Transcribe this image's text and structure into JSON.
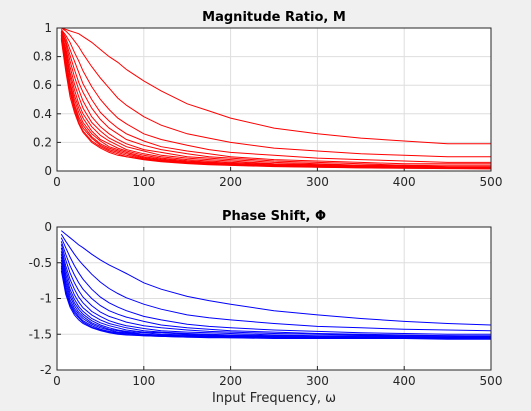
{
  "chart_data": [
    {
      "type": "line",
      "title": "Magnitude Ratio, M",
      "xlabel": "",
      "ylabel": "",
      "xlim": [
        0,
        500
      ],
      "ylim": [
        0,
        1
      ],
      "xticks": [
        "0",
        "100",
        "200",
        "300",
        "400",
        "500"
      ],
      "yticks": [
        "0",
        "0.2",
        "0.4",
        "0.6",
        "0.8",
        "1"
      ],
      "grid": true,
      "color": "#ff0000",
      "x": [
        5,
        10,
        15,
        20,
        25,
        30,
        40,
        50,
        60,
        70,
        80,
        100,
        120,
        150,
        175,
        200,
        250,
        300,
        350,
        400,
        450,
        500
      ],
      "series": [
        {
          "values": [
            1.0,
            0.99,
            0.98,
            0.97,
            0.96,
            0.94,
            0.9,
            0.85,
            0.8,
            0.76,
            0.71,
            0.63,
            0.56,
            0.47,
            0.42,
            0.37,
            0.3,
            0.26,
            0.23,
            0.21,
            0.19,
            0.19
          ]
        },
        {
          "values": [
            1.0,
            0.98,
            0.95,
            0.91,
            0.87,
            0.82,
            0.73,
            0.65,
            0.58,
            0.51,
            0.46,
            0.38,
            0.32,
            0.26,
            0.23,
            0.2,
            0.16,
            0.14,
            0.12,
            0.11,
            0.1,
            0.1
          ]
        },
        {
          "values": [
            0.99,
            0.95,
            0.9,
            0.83,
            0.77,
            0.7,
            0.59,
            0.5,
            0.43,
            0.37,
            0.33,
            0.26,
            0.22,
            0.18,
            0.15,
            0.13,
            0.11,
            0.09,
            0.08,
            0.07,
            0.06,
            0.06
          ]
        },
        {
          "values": [
            0.99,
            0.93,
            0.85,
            0.77,
            0.69,
            0.61,
            0.5,
            0.41,
            0.35,
            0.3,
            0.26,
            0.21,
            0.17,
            0.14,
            0.12,
            0.1,
            0.08,
            0.07,
            0.06,
            0.05,
            0.05,
            0.05
          ]
        },
        {
          "values": [
            0.98,
            0.91,
            0.81,
            0.71,
            0.62,
            0.55,
            0.44,
            0.36,
            0.3,
            0.26,
            0.22,
            0.18,
            0.15,
            0.12,
            0.1,
            0.09,
            0.07,
            0.06,
            0.05,
            0.04,
            0.04,
            0.04
          ]
        },
        {
          "values": [
            0.98,
            0.89,
            0.77,
            0.66,
            0.57,
            0.49,
            0.38,
            0.31,
            0.26,
            0.22,
            0.19,
            0.15,
            0.13,
            0.1,
            0.09,
            0.08,
            0.06,
            0.05,
            0.04,
            0.04,
            0.03,
            0.03
          ]
        },
        {
          "values": [
            0.97,
            0.86,
            0.73,
            0.61,
            0.52,
            0.44,
            0.34,
            0.28,
            0.23,
            0.2,
            0.17,
            0.14,
            0.11,
            0.09,
            0.08,
            0.07,
            0.05,
            0.045,
            0.04,
            0.035,
            0.03,
            0.03
          ]
        },
        {
          "values": [
            0.97,
            0.84,
            0.69,
            0.57,
            0.47,
            0.4,
            0.31,
            0.25,
            0.21,
            0.18,
            0.15,
            0.12,
            0.1,
            0.08,
            0.07,
            0.06,
            0.048,
            0.04,
            0.035,
            0.03,
            0.027,
            0.025
          ]
        },
        {
          "values": [
            0.96,
            0.82,
            0.66,
            0.53,
            0.44,
            0.37,
            0.28,
            0.22,
            0.19,
            0.16,
            0.14,
            0.11,
            0.09,
            0.072,
            0.062,
            0.054,
            0.043,
            0.036,
            0.031,
            0.027,
            0.024,
            0.022
          ]
        },
        {
          "values": [
            0.95,
            0.79,
            0.62,
            0.5,
            0.41,
            0.34,
            0.26,
            0.21,
            0.17,
            0.15,
            0.13,
            0.1,
            0.083,
            0.066,
            0.057,
            0.05,
            0.04,
            0.033,
            0.029,
            0.025,
            0.022,
            0.02
          ]
        },
        {
          "values": [
            0.95,
            0.77,
            0.6,
            0.47,
            0.38,
            0.32,
            0.24,
            0.19,
            0.16,
            0.14,
            0.12,
            0.093,
            0.077,
            0.062,
            0.053,
            0.046,
            0.037,
            0.031,
            0.026,
            0.023,
            0.02,
            0.018
          ]
        },
        {
          "values": [
            0.94,
            0.75,
            0.57,
            0.45,
            0.36,
            0.3,
            0.23,
            0.18,
            0.15,
            0.13,
            0.11,
            0.087,
            0.072,
            0.058,
            0.05,
            0.043,
            0.035,
            0.029,
            0.025,
            0.022,
            0.019,
            0.017
          ]
        },
        {
          "values": [
            0.93,
            0.72,
            0.55,
            0.43,
            0.34,
            0.28,
            0.21,
            0.17,
            0.14,
            0.12,
            0.1,
            0.082,
            0.068,
            0.055,
            0.047,
            0.041,
            0.033,
            0.027,
            0.023,
            0.02,
            0.018,
            0.016
          ]
        },
        {
          "values": [
            0.92,
            0.7,
            0.52,
            0.41,
            0.33,
            0.27,
            0.2,
            0.16,
            0.13,
            0.11,
            0.1,
            0.078,
            0.065,
            0.052,
            0.044,
            0.039,
            0.031,
            0.026,
            0.022,
            0.019,
            0.017,
            0.015
          ]
        }
      ]
    },
    {
      "type": "line",
      "title": "Phase Shift, Φ",
      "xlabel": "Input Frequency, ω",
      "ylabel": "",
      "xlim": [
        0,
        500
      ],
      "ylim": [
        -2,
        0
      ],
      "xticks": [
        "0",
        "100",
        "200",
        "300",
        "400",
        "500"
      ],
      "yticks": [
        "-2",
        "-1.5",
        "-1",
        "-0.5",
        "0"
      ],
      "grid": true,
      "color": "#0000ff",
      "x": [
        5,
        10,
        15,
        20,
        25,
        30,
        40,
        50,
        60,
        70,
        80,
        100,
        120,
        150,
        175,
        200,
        250,
        300,
        350,
        400,
        450,
        500
      ],
      "series": [
        {
          "values": [
            -0.05,
            -0.1,
            -0.15,
            -0.2,
            -0.25,
            -0.29,
            -0.38,
            -0.46,
            -0.53,
            -0.59,
            -0.65,
            -0.78,
            -0.87,
            -0.97,
            -1.03,
            -1.08,
            -1.17,
            -1.23,
            -1.28,
            -1.32,
            -1.35,
            -1.37
          ]
        },
        {
          "values": [
            -0.1,
            -0.2,
            -0.29,
            -0.38,
            -0.46,
            -0.53,
            -0.66,
            -0.77,
            -0.86,
            -0.93,
            -0.99,
            -1.08,
            -1.15,
            -1.23,
            -1.27,
            -1.3,
            -1.35,
            -1.39,
            -1.41,
            -1.43,
            -1.44,
            -1.45
          ]
        },
        {
          "values": [
            -0.15,
            -0.29,
            -0.42,
            -0.54,
            -0.64,
            -0.73,
            -0.87,
            -0.98,
            -1.06,
            -1.12,
            -1.17,
            -1.25,
            -1.3,
            -1.36,
            -1.39,
            -1.41,
            -1.44,
            -1.46,
            -1.48,
            -1.49,
            -1.5,
            -1.5
          ]
        },
        {
          "values": [
            -0.2,
            -0.38,
            -0.54,
            -0.67,
            -0.78,
            -0.87,
            -1.0,
            -1.1,
            -1.17,
            -1.22,
            -1.26,
            -1.32,
            -1.37,
            -1.41,
            -1.43,
            -1.45,
            -1.47,
            -1.49,
            -1.5,
            -1.51,
            -1.52,
            -1.52
          ]
        },
        {
          "values": [
            -0.24,
            -0.46,
            -0.64,
            -0.78,
            -0.89,
            -0.98,
            -1.1,
            -1.19,
            -1.25,
            -1.29,
            -1.33,
            -1.38,
            -1.41,
            -1.44,
            -1.46,
            -1.47,
            -1.49,
            -1.5,
            -1.51,
            -1.52,
            -1.52,
            -1.53
          ]
        },
        {
          "values": [
            -0.29,
            -0.54,
            -0.73,
            -0.87,
            -0.98,
            -1.06,
            -1.18,
            -1.25,
            -1.31,
            -1.35,
            -1.38,
            -1.42,
            -1.45,
            -1.47,
            -1.48,
            -1.49,
            -1.51,
            -1.52,
            -1.52,
            -1.53,
            -1.53,
            -1.54
          ]
        },
        {
          "values": [
            -0.34,
            -0.6,
            -0.8,
            -0.95,
            -1.05,
            -1.13,
            -1.23,
            -1.3,
            -1.35,
            -1.38,
            -1.41,
            -1.45,
            -1.47,
            -1.49,
            -1.5,
            -1.51,
            -1.52,
            -1.53,
            -1.53,
            -1.54,
            -1.54,
            -1.54
          ]
        },
        {
          "values": [
            -0.38,
            -0.66,
            -0.87,
            -1.01,
            -1.11,
            -1.18,
            -1.28,
            -1.34,
            -1.38,
            -1.41,
            -1.44,
            -1.47,
            -1.48,
            -1.5,
            -1.51,
            -1.52,
            -1.53,
            -1.53,
            -1.54,
            -1.54,
            -1.55,
            -1.55
          ]
        },
        {
          "values": [
            -0.42,
            -0.72,
            -0.92,
            -1.06,
            -1.15,
            -1.22,
            -1.31,
            -1.37,
            -1.41,
            -1.44,
            -1.46,
            -1.48,
            -1.5,
            -1.51,
            -1.52,
            -1.53,
            -1.54,
            -1.54,
            -1.55,
            -1.55,
            -1.55,
            -1.55
          ]
        },
        {
          "values": [
            -0.46,
            -0.77,
            -0.97,
            -1.1,
            -1.19,
            -1.25,
            -1.34,
            -1.39,
            -1.43,
            -1.45,
            -1.47,
            -1.5,
            -1.51,
            -1.52,
            -1.53,
            -1.53,
            -1.54,
            -1.55,
            -1.55,
            -1.55,
            -1.55,
            -1.56
          ]
        },
        {
          "values": [
            -0.5,
            -0.82,
            -1.02,
            -1.14,
            -1.22,
            -1.28,
            -1.36,
            -1.41,
            -1.44,
            -1.47,
            -1.48,
            -1.5,
            -1.52,
            -1.53,
            -1.53,
            -1.54,
            -1.55,
            -1.55,
            -1.55,
            -1.56,
            -1.56,
            -1.56
          ]
        },
        {
          "values": [
            -0.54,
            -0.87,
            -1.06,
            -1.17,
            -1.25,
            -1.31,
            -1.38,
            -1.43,
            -1.46,
            -1.48,
            -1.49,
            -1.51,
            -1.52,
            -1.53,
            -1.54,
            -1.54,
            -1.55,
            -1.55,
            -1.56,
            -1.56,
            -1.56,
            -1.56
          ]
        },
        {
          "values": [
            -0.57,
            -0.9,
            -1.09,
            -1.2,
            -1.27,
            -1.33,
            -1.4,
            -1.44,
            -1.47,
            -1.49,
            -1.5,
            -1.52,
            -1.53,
            -1.54,
            -1.54,
            -1.55,
            -1.55,
            -1.56,
            -1.56,
            -1.56,
            -1.56,
            -1.56
          ]
        },
        {
          "values": [
            -0.61,
            -0.94,
            -1.12,
            -1.23,
            -1.3,
            -1.35,
            -1.41,
            -1.45,
            -1.48,
            -1.5,
            -1.51,
            -1.52,
            -1.53,
            -1.54,
            -1.55,
            -1.55,
            -1.56,
            -1.56,
            -1.56,
            -1.56,
            -1.57,
            -1.57
          ]
        }
      ]
    }
  ]
}
